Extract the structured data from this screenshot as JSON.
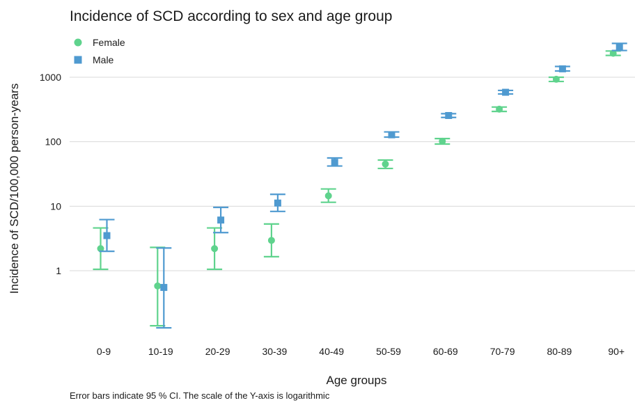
{
  "chart_data": {
    "type": "scatter",
    "title": "Incidence of SCD according to sex and age group",
    "xlabel": "Age groups",
    "ylabel": "Incidence of SCD/100,000 person-years",
    "caption": "Error bars indicate 95 % CI. The scale of the Y-axis is logarithmic",
    "y_scale": "log",
    "ylim": [
      0.11,
      4500
    ],
    "y_ticks": [
      1,
      10,
      100,
      1000
    ],
    "y_tick_labels": [
      "1",
      "10",
      "100",
      "1000"
    ],
    "grid": "horizontal",
    "legend_position": "top-left",
    "categories": [
      "0-9",
      "10-19",
      "20-29",
      "30-39",
      "40-49",
      "50-59",
      "60-69",
      "70-79",
      "80-89",
      "90+"
    ],
    "series": [
      {
        "name": "Female",
        "marker": "circle",
        "color": "#5fd38d",
        "values": [
          2.2,
          0.58,
          2.2,
          2.95,
          14.5,
          45,
          102,
          320,
          930,
          2350
        ],
        "ci_low": [
          1.05,
          0.14,
          1.05,
          1.65,
          11.5,
          38.5,
          92,
          295,
          860,
          2180
        ],
        "ci_high": [
          4.6,
          2.3,
          4.6,
          5.3,
          18.5,
          52,
          112,
          345,
          1000,
          2550
        ]
      },
      {
        "name": "Male",
        "marker": "square",
        "color": "#4f9ad0",
        "values": [
          3.5,
          0.55,
          6.1,
          11.2,
          48,
          128,
          255,
          585,
          1350,
          2900
        ],
        "ci_low": [
          2.0,
          0.13,
          3.9,
          8.3,
          42,
          118,
          238,
          550,
          1250,
          2600
        ],
        "ci_high": [
          6.2,
          2.25,
          9.6,
          15.3,
          56,
          142,
          272,
          625,
          1470,
          3350
        ]
      }
    ]
  }
}
